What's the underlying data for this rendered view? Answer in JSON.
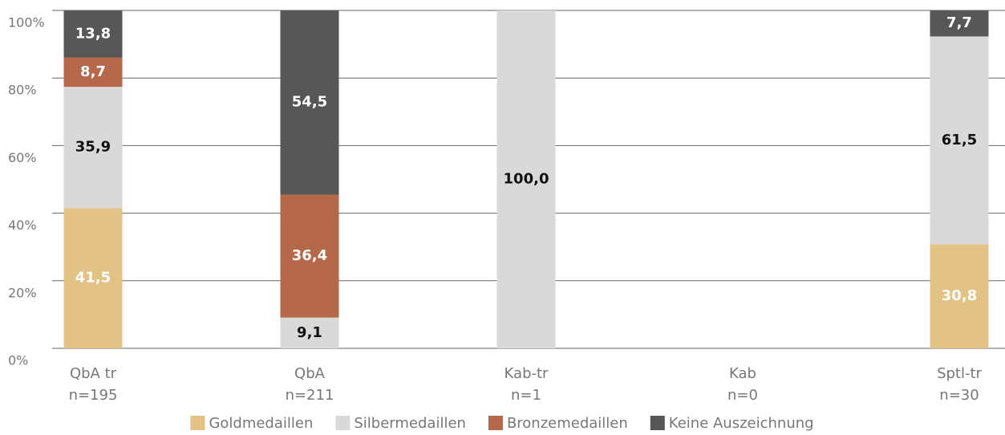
{
  "chart_data": {
    "type": "stacked_bar",
    "categories": [
      [
        "QbA tr",
        "n=195"
      ],
      [
        "QbA",
        "n=211"
      ],
      [
        "Kab-tr",
        "n=1"
      ],
      [
        "Kab",
        "n=0"
      ],
      [
        "Sptl-tr",
        "n=30"
      ]
    ],
    "series": [
      {
        "name": "Goldmedaillen",
        "color": "#e2c285",
        "label_color": "#ffffff",
        "values": [
          41.5,
          null,
          null,
          null,
          30.8
        ],
        "value_labels": [
          "41,5",
          null,
          null,
          null,
          "30,8"
        ]
      },
      {
        "name": "Silbermedaillen",
        "color": "#d9d9d9",
        "label_color": "#111111",
        "values": [
          35.9,
          9.1,
          100.0,
          null,
          61.5
        ],
        "value_labels": [
          "35,9",
          "9,1",
          "100,0",
          null,
          "61,5"
        ]
      },
      {
        "name": "Bronzemedaillen",
        "color": "#b5694a",
        "label_color": "#ffffff",
        "values": [
          8.7,
          36.4,
          null,
          null,
          null
        ],
        "value_labels": [
          "8,7",
          "36,4",
          null,
          null,
          null
        ]
      },
      {
        "name": "Keine Auszeichnung",
        "color": "#575757",
        "label_color": "#ffffff",
        "values": [
          13.8,
          54.5,
          null,
          null,
          7.7
        ],
        "value_labels": [
          "13,8",
          "54,5",
          null,
          null,
          "7,7"
        ]
      }
    ],
    "ylim": [
      0,
      100
    ],
    "yticks": [
      {
        "value": 0,
        "label": "0%"
      },
      {
        "value": 20,
        "label": "20%"
      },
      {
        "value": 40,
        "label": "40%"
      },
      {
        "value": 60,
        "label": "60%"
      },
      {
        "value": 80,
        "label": "80%"
      },
      {
        "value": 100,
        "label": "100%"
      }
    ],
    "grid": true,
    "legend": "bottom"
  }
}
